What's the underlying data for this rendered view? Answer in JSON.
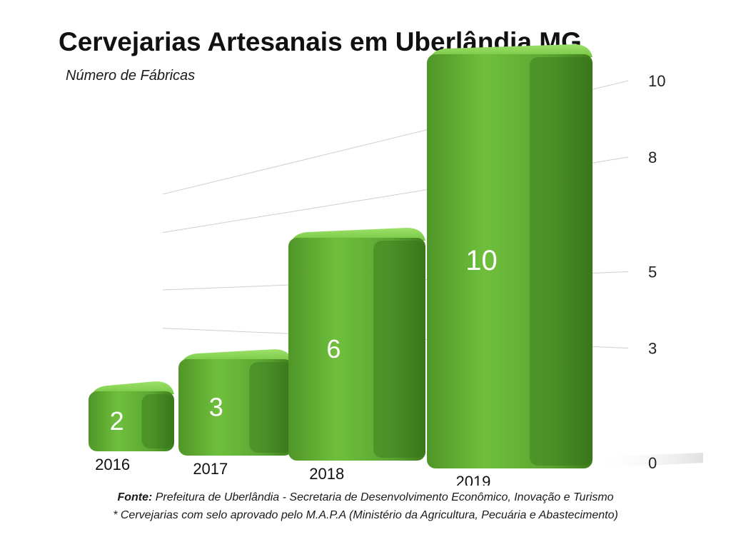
{
  "chart_data": {
    "type": "bar",
    "title": "Cervejarias Artesanais em Uberlândia MG",
    "subtitle": "Número de Fábricas",
    "categories": [
      "2016",
      "2017",
      "2018",
      "2019"
    ],
    "values": [
      2,
      3,
      6,
      10
    ],
    "yticks": [
      "0",
      "3",
      "5",
      "8",
      "10"
    ],
    "ylim": [
      0,
      10
    ],
    "grid": true,
    "bar_color": "#6cc13a"
  },
  "source": {
    "label": "Fonte:",
    "text": " Prefeitura de Uberlândia - Secretaria de Desenvolvimento Econômico, Inovação e Turismo"
  },
  "footnote": "* Cervejarias com selo aprovado pelo M.A.P.A (Ministério da Agricultura, Pecuária e Abastecimento)"
}
